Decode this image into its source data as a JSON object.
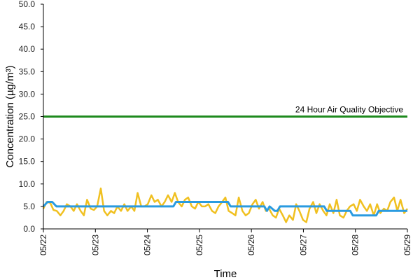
{
  "chart_data": {
    "type": "line",
    "xlabel": "Time",
    "ylabel": "Concentration (µg/m³)",
    "ylim": [
      0,
      50
    ],
    "y_ticks": [
      "0.0",
      "5.0",
      "10.0",
      "15.0",
      "20.0",
      "25.0",
      "30.0",
      "35.0",
      "40.0",
      "45.0",
      "50.0"
    ],
    "x_ticks": [
      "05/22",
      "05/23",
      "05/24",
      "05/25",
      "05/26",
      "05/27",
      "05/28",
      "05/29"
    ],
    "xlim_days": [
      22,
      29
    ],
    "grid": false,
    "objective": {
      "label": "24 Hour Air Quality Objective",
      "value": 25,
      "color": "#1e8a1e"
    },
    "series": [
      {
        "kind": "hourly",
        "color": "#f0c020",
        "points": [
          [
            22.0,
            4.5
          ],
          [
            22.08,
            6.0
          ],
          [
            22.17,
            5.8
          ],
          [
            22.25,
            4.2
          ],
          [
            22.33,
            4.0
          ],
          [
            22.42,
            3.0
          ],
          [
            22.5,
            4.0
          ],
          [
            22.58,
            5.5
          ],
          [
            22.67,
            5.0
          ],
          [
            22.75,
            4.0
          ],
          [
            22.83,
            5.5
          ],
          [
            22.92,
            4.0
          ],
          [
            23.0,
            3.0
          ],
          [
            23.08,
            6.5
          ],
          [
            23.17,
            4.5
          ],
          [
            23.25,
            4.2
          ],
          [
            23.33,
            5.0
          ],
          [
            23.42,
            9.0
          ],
          [
            23.5,
            4.0
          ],
          [
            23.58,
            3.0
          ],
          [
            23.67,
            4.0
          ],
          [
            23.75,
            3.5
          ],
          [
            23.83,
            5.0
          ],
          [
            23.92,
            4.0
          ],
          [
            24.0,
            5.5
          ],
          [
            24.08,
            4.0
          ],
          [
            24.17,
            5.0
          ],
          [
            24.25,
            4.0
          ],
          [
            24.33,
            8.0
          ],
          [
            24.42,
            5.0
          ],
          [
            24.5,
            5.0
          ],
          [
            24.58,
            5.5
          ],
          [
            24.67,
            7.5
          ],
          [
            24.75,
            6.0
          ],
          [
            24.83,
            6.5
          ],
          [
            24.92,
            5.0
          ],
          [
            25.0,
            6.0
          ],
          [
            25.08,
            7.5
          ],
          [
            25.17,
            6.0
          ],
          [
            25.25,
            8.0
          ],
          [
            25.33,
            6.0
          ],
          [
            25.42,
            5.0
          ],
          [
            25.5,
            6.5
          ],
          [
            25.58,
            7.0
          ],
          [
            25.67,
            5.0
          ],
          [
            25.75,
            4.5
          ],
          [
            25.83,
            6.0
          ],
          [
            25.92,
            5.0
          ],
          [
            26.0,
            5.0
          ],
          [
            26.08,
            5.5
          ],
          [
            26.17,
            4.0
          ],
          [
            26.25,
            3.5
          ],
          [
            26.33,
            5.0
          ],
          [
            26.42,
            6.0
          ],
          [
            26.5,
            7.0
          ],
          [
            26.58,
            4.0
          ],
          [
            26.67,
            3.5
          ],
          [
            26.75,
            3.0
          ],
          [
            26.83,
            7.0
          ],
          [
            26.92,
            4.0
          ],
          [
            27.0,
            3.0
          ],
          [
            27.08,
            3.5
          ],
          [
            27.17,
            5.5
          ],
          [
            27.25,
            6.5
          ],
          [
            27.33,
            4.5
          ],
          [
            27.42,
            6.0
          ],
          [
            27.5,
            4.0
          ],
          [
            27.58,
            4.5
          ],
          [
            27.67,
            3.0
          ],
          [
            27.75,
            2.5
          ],
          [
            27.83,
            4.5
          ],
          [
            27.92,
            3.0
          ],
          [
            28.0,
            1.5
          ],
          [
            28.08,
            3.0
          ],
          [
            28.17,
            2.0
          ],
          [
            28.25,
            5.5
          ],
          [
            28.33,
            4.0
          ],
          [
            28.42,
            2.0
          ],
          [
            28.5,
            1.5
          ],
          [
            28.58,
            4.5
          ],
          [
            28.67,
            6.0
          ],
          [
            28.75,
            3.5
          ],
          [
            28.83,
            5.5
          ],
          [
            28.92,
            4.0
          ],
          [
            29.0,
            3.0
          ],
          [
            29.08,
            5.5
          ],
          [
            29.17,
            3.5
          ],
          [
            29.25,
            6.5
          ],
          [
            29.33,
            3.0
          ],
          [
            29.42,
            2.5
          ],
          [
            29.5,
            4.0
          ],
          [
            29.58,
            5.0
          ],
          [
            29.67,
            5.5
          ],
          [
            29.75,
            4.0
          ],
          [
            29.83,
            6.5
          ],
          [
            29.92,
            5.0
          ],
          [
            30.0,
            4.0
          ],
          [
            30.08,
            5.5
          ],
          [
            30.17,
            3.0
          ],
          [
            30.25,
            5.5
          ],
          [
            30.33,
            3.5
          ],
          [
            30.42,
            4.5
          ],
          [
            30.5,
            4.0
          ],
          [
            30.58,
            6.0
          ],
          [
            30.67,
            7.0
          ],
          [
            30.75,
            4.0
          ],
          [
            30.83,
            6.5
          ],
          [
            30.92,
            3.5
          ],
          [
            31.0,
            4.5
          ]
        ]
      },
      {
        "kind": "24h-average",
        "color": "#2a9be0",
        "points": [
          [
            22.0,
            5.0
          ],
          [
            22.08,
            6.0
          ],
          [
            22.17,
            6.0
          ],
          [
            22.25,
            5.0
          ],
          [
            23.5,
            5.0
          ],
          [
            24.5,
            5.0
          ],
          [
            24.55,
            6.0
          ],
          [
            25.55,
            6.0
          ],
          [
            25.6,
            5.0
          ],
          [
            26.25,
            5.0
          ],
          [
            26.3,
            4.0
          ],
          [
            26.35,
            5.0
          ],
          [
            26.45,
            4.0
          ],
          [
            26.5,
            4.0
          ],
          [
            26.55,
            5.0
          ],
          [
            27.4,
            5.0
          ],
          [
            27.45,
            4.0
          ],
          [
            27.9,
            4.0
          ],
          [
            27.95,
            3.0
          ],
          [
            28.4,
            3.0
          ],
          [
            28.45,
            4.0
          ],
          [
            29.0,
            4.0
          ]
        ]
      }
    ]
  }
}
